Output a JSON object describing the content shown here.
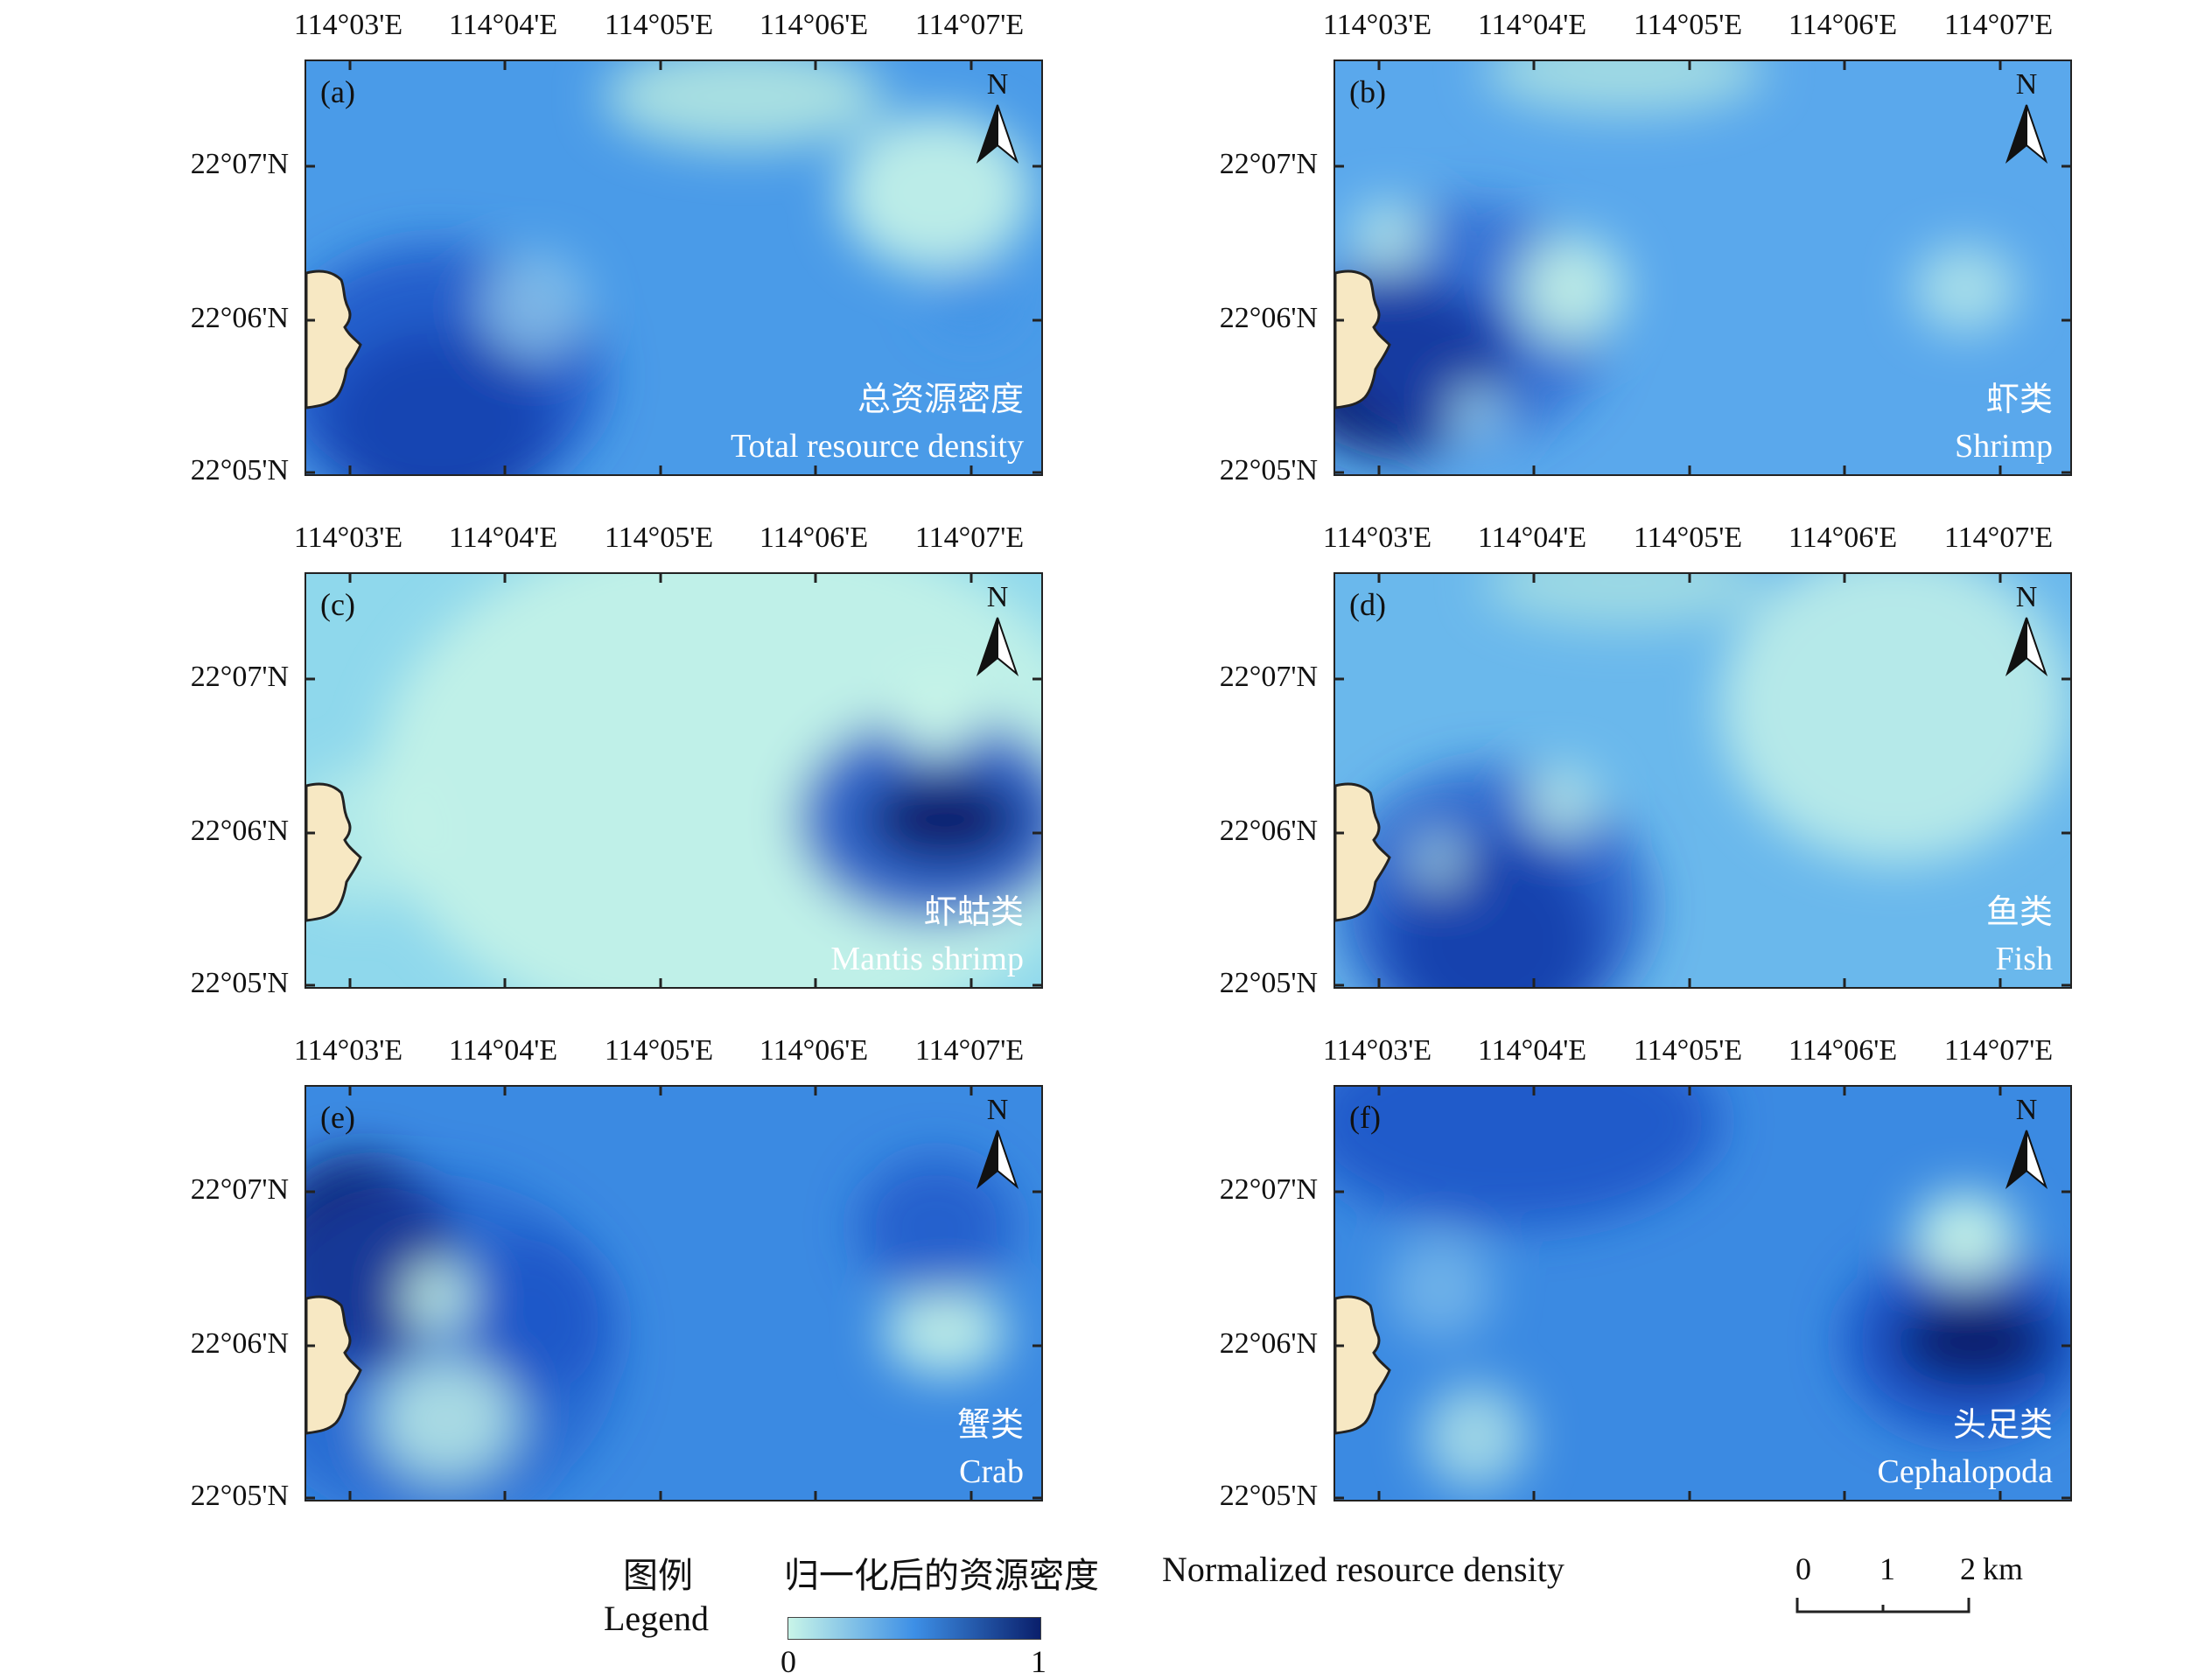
{
  "x_ticks": [
    "114°03'E",
    "114°04'E",
    "114°05'E",
    "114°06'E",
    "114°07'E"
  ],
  "y_ticks": [
    "22°07'N",
    "22°06'N",
    "22°05'N"
  ],
  "north_label": "N",
  "colors": {
    "low": "#c8f5e8",
    "mid": "#3d8fe6",
    "high": "#0a1f6b",
    "land": "#f7e8c3",
    "text_on_map": "#ffffff"
  },
  "panels": [
    {
      "letter": "(a)",
      "title_cn": "总资源密度",
      "title_en": "Total resource density"
    },
    {
      "letter": "(b)",
      "title_cn": "虾类",
      "title_en": "Shrimp"
    },
    {
      "letter": "(c)",
      "title_cn": "虾蛄类",
      "title_en": "Mantis shrimp"
    },
    {
      "letter": "(d)",
      "title_cn": "鱼类",
      "title_en": "Fish"
    },
    {
      "letter": "(e)",
      "title_cn": "蟹类",
      "title_en": "Crab"
    },
    {
      "letter": "(f)",
      "title_cn": "头足类",
      "title_en": "Cephalopoda"
    }
  ],
  "legend": {
    "title_cn": "图例",
    "title_en": "Legend",
    "label_cn": "归一化后的资源密度",
    "label_en": "Normalized resource density",
    "min": "0",
    "max": "1"
  },
  "scale_bar": {
    "ticks": [
      "0",
      "1",
      "2"
    ],
    "unit": "km"
  }
}
